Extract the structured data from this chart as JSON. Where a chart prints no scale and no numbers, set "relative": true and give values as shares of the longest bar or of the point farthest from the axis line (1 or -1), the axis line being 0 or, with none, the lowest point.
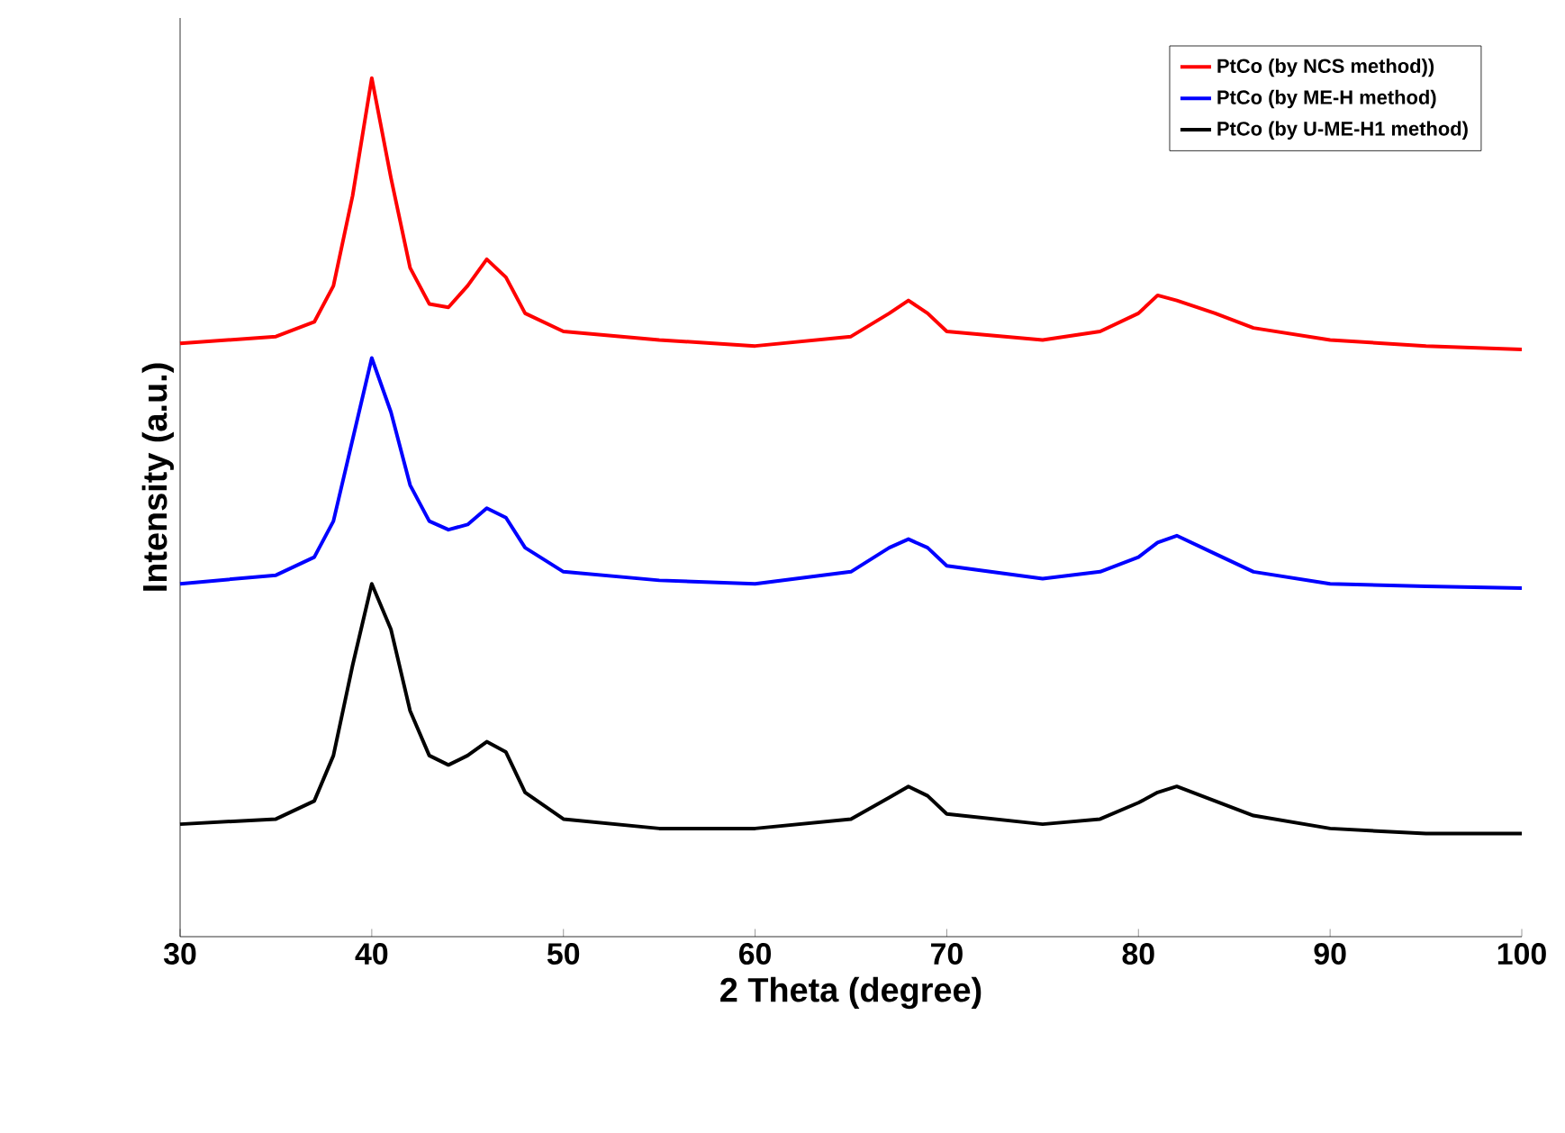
{
  "chart_data": {
    "type": "line",
    "relative": true,
    "xlabel": "2 Theta (degree)",
    "ylabel": "Intensity (a.u.)",
    "xlim": [
      30,
      100
    ],
    "xticks": [
      30,
      40,
      50,
      60,
      70,
      80,
      90,
      100
    ],
    "x": [
      30,
      35,
      37,
      38,
      39,
      40,
      41,
      42,
      43,
      44,
      45,
      46,
      47,
      48,
      50,
      55,
      60,
      65,
      67,
      68,
      69,
      70,
      75,
      78,
      80,
      81,
      82,
      84,
      86,
      90,
      95,
      100
    ],
    "legend": "top right",
    "grid": false,
    "marker": "none",
    "line_style": "solid",
    "series": [
      {
        "name": "PtCo (by NCS method))",
        "color": "#ff0000",
        "values": [
          0.691,
          0.699,
          0.716,
          0.758,
          0.863,
          1.0,
          0.884,
          0.779,
          0.737,
          0.733,
          0.758,
          0.789,
          0.768,
          0.726,
          0.705,
          0.695,
          0.688,
          0.699,
          0.726,
          0.741,
          0.726,
          0.705,
          0.695,
          0.705,
          0.726,
          0.747,
          0.741,
          0.726,
          0.709,
          0.695,
          0.688,
          0.684
        ]
      },
      {
        "name": "PtCo (by ME-H  method)",
        "color": "#0000ff",
        "values": [
          0.411,
          0.421,
          0.442,
          0.484,
          0.579,
          0.674,
          0.611,
          0.526,
          0.484,
          0.474,
          0.48,
          0.499,
          0.488,
          0.453,
          0.425,
          0.415,
          0.411,
          0.425,
          0.453,
          0.463,
          0.453,
          0.432,
          0.417,
          0.425,
          0.442,
          0.459,
          0.467,
          0.446,
          0.425,
          0.411,
          0.408,
          0.406
        ]
      },
      {
        "name": "PtCo (by U-ME-H1 method)",
        "color": "#000000",
        "values": [
          0.131,
          0.137,
          0.158,
          0.211,
          0.316,
          0.411,
          0.358,
          0.263,
          0.211,
          0.2,
          0.211,
          0.227,
          0.215,
          0.168,
          0.137,
          0.126,
          0.126,
          0.137,
          0.162,
          0.175,
          0.164,
          0.143,
          0.131,
          0.137,
          0.156,
          0.168,
          0.175,
          0.158,
          0.141,
          0.126,
          0.12,
          0.12
        ]
      }
    ]
  }
}
